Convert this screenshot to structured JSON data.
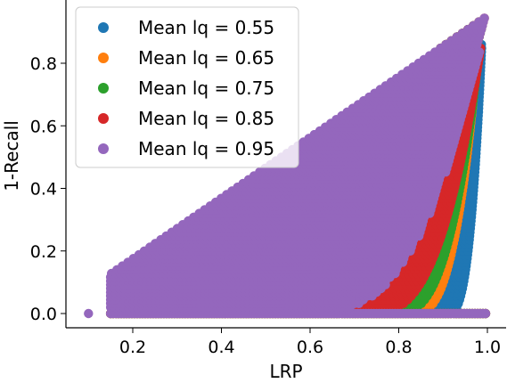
{
  "chart_data": {
    "type": "scatter",
    "xlabel": "LRP",
    "ylabel": "1-Recall",
    "xlim": [
      0.05,
      1.05
    ],
    "ylim": [
      -0.045,
      1.0
    ],
    "xticks": [
      0.2,
      0.4,
      0.6,
      0.8,
      1.0
    ],
    "xtick_labels": [
      "0.2",
      "0.4",
      "0.6",
      "0.8",
      "1.0"
    ],
    "yticks": [
      0.0,
      0.2,
      0.4,
      0.6,
      0.8
    ],
    "ytick_labels": [
      "0.0",
      "0.2",
      "0.4",
      "0.6",
      "0.8"
    ],
    "grid": false,
    "legend_position": "upper-left",
    "series": [
      {
        "name": "Mean lq = 0.55",
        "color": "#1f77b4",
        "lq": 0.55
      },
      {
        "name": "Mean lq = 0.65",
        "color": "#ff7f0e",
        "lq": 0.65
      },
      {
        "name": "Mean lq = 0.75",
        "color": "#2ca02c",
        "lq": 0.75
      },
      {
        "name": "Mean lq = 0.85",
        "color": "#d62728",
        "lq": 0.85
      },
      {
        "name": "Mean lq = 0.95",
        "color": "#9467bd",
        "lq": 0.95
      }
    ],
    "point_rule": "For each series, points satisfy LRP >= (1 - 0.05*(1 - lq)/1) * (1-Recall) ... filled wedge bounded above by 1-Recall ≈ LRP and on the right by a curved boundary that shifts left as lq decreases; a band of points lies at 1-Recall = 0 for LRP in [0.15, 1.0] plus an isolated point at (0.1, 0.0).",
    "boundary_lower_y_at_x": [
      {
        "lq": 0.55,
        "x_right_at_y0": 0.9,
        "x_right_at_y_top": 0.98
      },
      {
        "lq": 0.65,
        "x_right_at_y0": 0.83,
        "x_right_at_y_top": 0.985
      },
      {
        "lq": 0.75,
        "x_right_at_y0": 0.79,
        "x_right_at_y_top": 0.99
      },
      {
        "lq": 0.85,
        "x_right_at_y0": 0.73,
        "x_right_at_y_top": 0.995
      },
      {
        "lq": 0.95,
        "x_right_at_y0": 0.59,
        "x_right_at_y_top": 1.0
      }
    ]
  }
}
